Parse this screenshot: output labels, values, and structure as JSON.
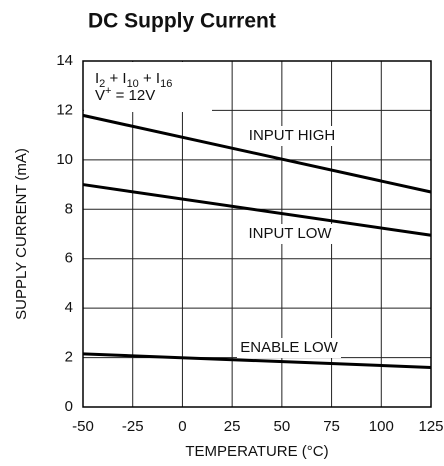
{
  "chart_data": {
    "type": "line",
    "title": "DC Supply Current",
    "x_label": "TEMPERATURE (°C)",
    "y_label": "SUPPLY CURRENT (mA)",
    "note_lines": [
      [
        "I",
        "2",
        " + I",
        "10",
        " + I",
        "16"
      ],
      [
        "V",
        "+",
        " = 12V"
      ]
    ],
    "x": [
      -50,
      125
    ],
    "series": [
      {
        "name": "INPUT HIGH",
        "color": "#000000",
        "values": [
          11.8,
          8.7
        ]
      },
      {
        "name": "INPUT LOW",
        "color": "#000000",
        "values": [
          9.0,
          6.95
        ]
      },
      {
        "name": "ENABLE LOW",
        "color": "#000000",
        "values": [
          2.15,
          1.6
        ]
      }
    ],
    "xlim": [
      -50,
      125
    ],
    "xticks": [
      -50,
      -25,
      0,
      25,
      50,
      75,
      100,
      125
    ],
    "ylim": [
      0,
      14
    ],
    "yticks": [
      0,
      2,
      4,
      6,
      8,
      10,
      12,
      14
    ],
    "grid": true
  }
}
